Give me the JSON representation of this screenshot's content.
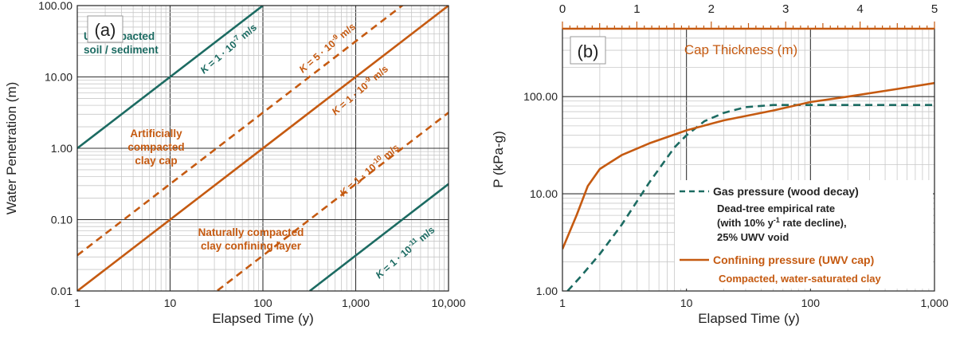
{
  "colors": {
    "teal": "#1c6b62",
    "orange": "#c55a11",
    "grid_major": "#333333",
    "grid_minor": "#c8c8c8"
  },
  "chart_data": [
    {
      "type": "line",
      "panel_label": "(a)",
      "xlabel": "Elapsed Time (y)",
      "ylabel": "Water Penetration (m)",
      "xscale": "log",
      "yscale": "log",
      "xlim": [
        1,
        10000
      ],
      "ylim": [
        0.01,
        100
      ],
      "xticks": [
        "1",
        "10",
        "100",
        "1,000",
        "10,000"
      ],
      "yticks": [
        "0.01",
        "0.10",
        "1.00",
        "10.00",
        "100.00"
      ],
      "grid": true,
      "series": [
        {
          "id": "k1e-7",
          "color": "teal",
          "style": "solid",
          "x": [
            1,
            100
          ],
          "y": [
            1,
            100
          ]
        },
        {
          "id": "k5e-9",
          "color": "orange",
          "style": "dashed",
          "x": [
            1,
            10000
          ],
          "y": [
            0.0316,
            316
          ]
        },
        {
          "id": "k1e-9",
          "color": "orange",
          "style": "solid",
          "x": [
            1,
            10000
          ],
          "y": [
            0.01,
            100
          ]
        },
        {
          "id": "k1e-10",
          "color": "orange",
          "style": "dashed",
          "x": [
            16,
            10000
          ],
          "y": [
            0.005,
            3.16
          ]
        },
        {
          "id": "k1e-11",
          "color": "teal",
          "style": "solid",
          "x": [
            320,
            10000
          ],
          "y": [
            0.01,
            0.316
          ]
        }
      ],
      "annotations": [
        {
          "id": "uncompacted",
          "lines": [
            "Uncompacted",
            "soil / sediment"
          ],
          "color": "teal"
        },
        {
          "id": "artificial",
          "lines": [
            "Artificially",
            "compacted",
            "clay cap"
          ],
          "color": "orange"
        },
        {
          "id": "natural",
          "lines": [
            "Naturally compacted",
            "clay confining layer"
          ],
          "color": "orange"
        },
        {
          "id": "lab_k1e-7",
          "k": "K",
          "text": " = 1 · 10",
          "exp": "-7",
          "unit": " m/s",
          "color": "teal"
        },
        {
          "id": "lab_k5e-9",
          "k": "K",
          "text": " = 5 · 10",
          "exp": "-9",
          "unit": " m/s",
          "color": "orange"
        },
        {
          "id": "lab_k1e-9",
          "k": "K",
          "text": " = 1 · 10",
          "exp": "-9",
          "unit": " m/s",
          "color": "orange"
        },
        {
          "id": "lab_k1e-10",
          "k": "K",
          "text": " = 1 · 10",
          "exp": "-10",
          "unit": " m/s",
          "color": "orange"
        },
        {
          "id": "lab_k1e-11",
          "k": "K",
          "text": " = 1 · 10",
          "exp": "-11",
          "unit": " m/s",
          "color": "teal"
        }
      ]
    },
    {
      "type": "line",
      "panel_label": "(b)",
      "xlabel": "Elapsed Time (y)",
      "ylabel": "P (kPa-g)",
      "xscale": "log",
      "yscale": "log",
      "xlim": [
        1,
        1000
      ],
      "ylim": [
        1,
        500
      ],
      "xticks": [
        "1",
        "10",
        "100",
        "1,000"
      ],
      "yticks": [
        "1.00",
        "10.00",
        "100.00"
      ],
      "top_axis": {
        "label": "Cap Thickness (m)",
        "ticks": [
          "0",
          "1",
          "2",
          "3",
          "4",
          "5"
        ],
        "range": [
          0,
          5
        ]
      },
      "grid": true,
      "series": [
        {
          "id": "gas",
          "name": "Gas pressure (wood decay)",
          "color": "teal",
          "style": "dashed",
          "x": [
            1.1,
            1.4,
            2,
            3,
            5,
            8,
            10,
            14,
            20,
            30,
            50,
            100,
            300,
            1000
          ],
          "y": [
            1,
            1.4,
            2.4,
            4.8,
            13,
            30,
            40,
            56,
            68,
            78,
            82,
            82,
            82,
            82
          ]
        },
        {
          "id": "confining",
          "name": "Confining pressure (UWV cap)",
          "color": "orange",
          "style": "solid",
          "x": [
            1,
            1.3,
            1.6,
            2,
            3,
            5,
            10,
            20,
            50,
            100,
            200,
            500,
            1000
          ],
          "y": [
            2.7,
            6,
            12,
            18,
            25,
            33,
            45,
            57,
            72,
            88,
            100,
            120,
            138
          ]
        }
      ],
      "legend": {
        "gas_label": "Gas pressure (wood decay)",
        "gas_note": [
          "Dead-tree empirical rate",
          "(with 10% y",
          "-1",
          " rate decline),",
          "25% UWV void"
        ],
        "conf_label": "Confining pressure (UWV cap)",
        "conf_note": "Compacted, water-saturated clay"
      }
    }
  ]
}
